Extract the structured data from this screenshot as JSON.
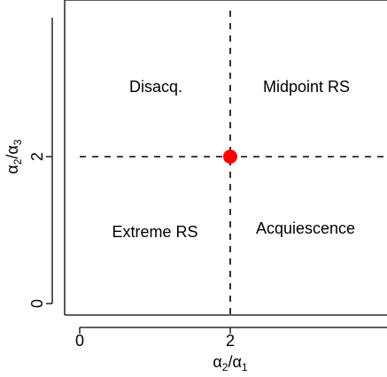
{
  "chart_data": {
    "type": "scatter",
    "x_label": "α2/α1",
    "y_label": "α2/α3",
    "x_ticks": [
      "0",
      "2"
    ],
    "y_ticks": [
      "0",
      "2"
    ],
    "x_tick_values": [
      0,
      2
    ],
    "y_tick_values": [
      0,
      2
    ],
    "xlim": [
      0,
      4
    ],
    "ylim": [
      0,
      4
    ],
    "reference_lines": {
      "vertical_x": 2,
      "horizontal_y": 2,
      "style": "dashed"
    },
    "point": {
      "x": 2,
      "y": 2,
      "color": "#ff0000"
    },
    "regions": {
      "top_left": "Disacq.",
      "top_right": "Midpoint RS",
      "bottom_left": "Extreme RS",
      "bottom_right": "Acquiescence"
    }
  }
}
